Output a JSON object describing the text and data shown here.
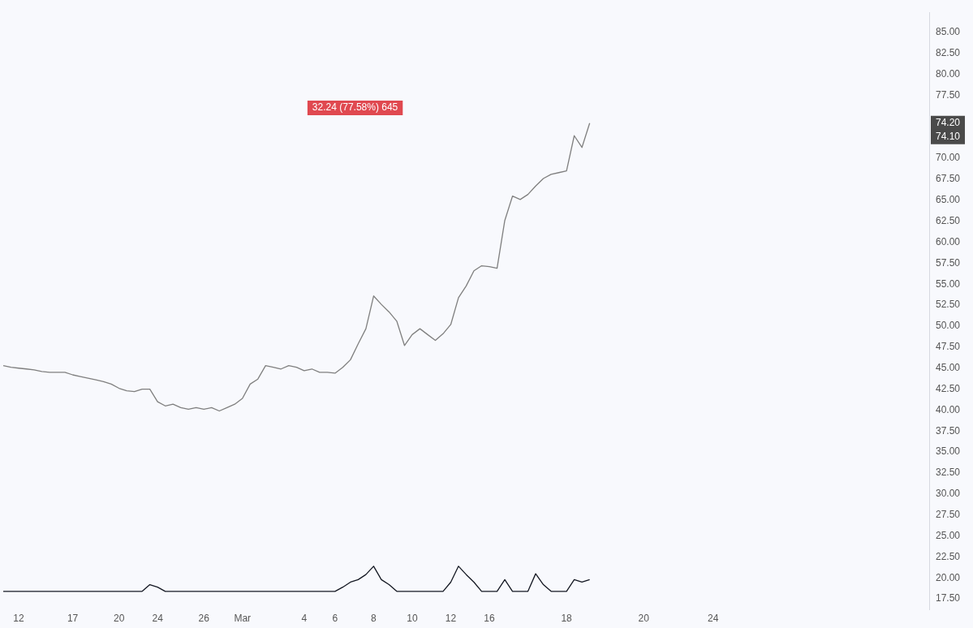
{
  "chart_data": {
    "type": "line",
    "categories": [
      null,
      null,
      "12",
      null,
      null,
      null,
      null,
      null,
      null,
      "17",
      null,
      null,
      null,
      null,
      null,
      "20",
      null,
      null,
      null,
      null,
      "24",
      null,
      null,
      null,
      null,
      null,
      "26",
      null,
      null,
      null,
      null,
      "Mar",
      null,
      null,
      null,
      null,
      null,
      null,
      null,
      "4",
      null,
      null,
      null,
      "6",
      null,
      null,
      null,
      null,
      "8",
      null,
      null,
      null,
      null,
      "10",
      null,
      null,
      null,
      null,
      "12",
      null,
      null,
      null,
      null,
      "16",
      null,
      null,
      null,
      null,
      null,
      null,
      null,
      null,
      null,
      "18",
      null,
      null,
      null,
      null,
      null,
      null,
      null,
      null,
      null,
      "20",
      null,
      null,
      null,
      null,
      null,
      null,
      null,
      null,
      "24",
      null,
      null,
      null,
      null,
      null,
      null,
      null,
      null,
      null,
      null,
      null,
      null,
      null,
      null,
      null,
      null,
      null,
      null,
      null,
      null,
      null,
      null,
      null,
      null,
      null,
      null,
      null,
      null
    ],
    "series": [
      {
        "color": "#7f7f7f",
        "values": [
          45.3,
          45.1,
          45.0,
          44.9,
          44.8,
          44.6,
          44.5,
          44.5,
          44.5,
          44.2,
          44.0,
          43.8,
          43.6,
          43.4,
          43.1,
          42.6,
          42.3,
          42.2,
          42.5,
          42.5,
          41.0,
          40.5,
          40.7,
          40.3,
          40.1,
          40.3,
          40.1,
          40.3,
          39.9,
          40.3,
          40.7,
          41.4,
          43.1,
          43.7,
          45.3,
          45.1,
          44.9,
          45.3,
          45.1,
          44.7,
          44.9,
          44.5,
          44.5,
          44.4,
          45.1,
          46.0,
          47.9,
          49.7,
          53.6,
          52.6,
          51.7,
          50.6,
          47.7,
          49.0,
          49.7,
          49.0,
          48.3,
          49.1,
          50.2,
          53.4,
          54.8,
          56.6,
          57.2,
          57.1,
          56.9,
          62.6,
          65.5,
          65.1,
          65.7,
          66.7,
          67.6,
          68.1,
          68.3,
          68.5,
          72.7,
          71.3,
          74.2,
          null,
          null,
          null,
          null,
          null,
          null,
          null,
          null,
          null,
          null,
          null,
          null,
          null,
          null,
          null,
          null,
          null,
          null,
          null,
          null,
          null,
          null,
          null,
          null,
          null,
          null,
          null,
          null,
          null,
          null,
          null,
          null,
          null,
          null,
          null,
          null,
          null,
          null,
          null,
          null,
          null,
          null,
          null,
          null
        ]
      },
      {
        "color": "#131722",
        "values": [
          18.4,
          18.4,
          18.4,
          18.4,
          18.4,
          18.4,
          18.4,
          18.4,
          18.4,
          18.4,
          18.4,
          18.4,
          18.4,
          18.4,
          18.4,
          18.4,
          18.4,
          18.4,
          18.4,
          19.2,
          18.9,
          18.4,
          18.4,
          18.4,
          18.4,
          18.4,
          18.4,
          18.4,
          18.4,
          18.4,
          18.4,
          18.4,
          18.4,
          18.4,
          18.4,
          18.4,
          18.4,
          18.4,
          18.4,
          18.4,
          18.4,
          18.4,
          18.4,
          18.4,
          18.9,
          19.5,
          19.8,
          20.4,
          21.4,
          19.8,
          19.2,
          18.4,
          18.4,
          18.4,
          18.4,
          18.4,
          18.4,
          18.4,
          19.5,
          21.4,
          20.4,
          19.5,
          18.4,
          18.4,
          18.4,
          19.8,
          18.4,
          18.4,
          18.4,
          20.5,
          19.2,
          18.4,
          18.4,
          18.4,
          19.8,
          19.5,
          19.8,
          null,
          null,
          null,
          null,
          null,
          null,
          null,
          null,
          null,
          null,
          null,
          null,
          null,
          null,
          null,
          null,
          null,
          null,
          null,
          null,
          null,
          null,
          null,
          null,
          null,
          null,
          null,
          null,
          null,
          null,
          null,
          null,
          null,
          null,
          null,
          null,
          null,
          null,
          null,
          null,
          null,
          null,
          null,
          null
        ]
      }
    ],
    "ylim": [
      16.2,
      87.4
    ],
    "yticks": [
      {
        "value": 17.5,
        "label": "17.50"
      },
      {
        "value": 20,
        "label": "20.00"
      },
      {
        "value": 22.5,
        "label": "22.50"
      },
      {
        "value": 25,
        "label": "25.00"
      },
      {
        "value": 27.5,
        "label": "27.50"
      },
      {
        "value": 30,
        "label": "30.00"
      },
      {
        "value": 32.5,
        "label": "32.50"
      },
      {
        "value": 35,
        "label": "35.00"
      },
      {
        "value": 37.5,
        "label": "37.50"
      },
      {
        "value": 40,
        "label": "40.00"
      },
      {
        "value": 42.5,
        "label": "42.50"
      },
      {
        "value": 45,
        "label": "45.00"
      },
      {
        "value": 47.5,
        "label": "47.50"
      },
      {
        "value": 50,
        "label": "50.00"
      },
      {
        "value": 52.5,
        "label": "52.50"
      },
      {
        "value": 55,
        "label": "55.00"
      },
      {
        "value": 57.5,
        "label": "57.50"
      },
      {
        "value": 60,
        "label": "60.00"
      },
      {
        "value": 62.5,
        "label": "62.50"
      },
      {
        "value": 65,
        "label": "65.00"
      },
      {
        "value": 67.5,
        "label": "67.50"
      },
      {
        "value": 70,
        "label": "70.00"
      },
      {
        "value": 77.5,
        "label": "77.50"
      },
      {
        "value": 80,
        "label": "80.00"
      },
      {
        "value": 82.5,
        "label": "82.50"
      },
      {
        "value": 85,
        "label": "85.00"
      }
    ],
    "annotations": [
      "32.24 (77.58%) 645",
      {
        "text": "74.20",
        "y": 74.2
      },
      "74.10"
    ],
    "grid": false,
    "legend": false,
    "marker": "none",
    "line_style": "solid"
  }
}
